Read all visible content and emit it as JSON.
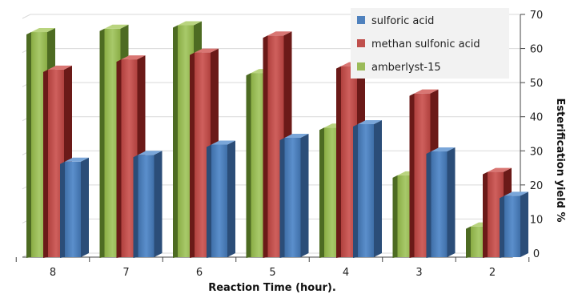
{
  "chart_data": {
    "type": "bar",
    "title": "",
    "xlabel": "Reaction Time (hour).",
    "ylabel": "Esterification yield %",
    "categories": [
      "8",
      "7",
      "6",
      "5",
      "4",
      "3",
      "2"
    ],
    "series": [
      {
        "name": "amberlyst-15",
        "color": "#9bbb59",
        "values": [
          66,
          67,
          68,
          54,
          38,
          24,
          9
        ]
      },
      {
        "name": "methan sulfonic acid",
        "color": "#c0504d",
        "values": [
          55,
          58,
          60,
          65,
          56,
          48,
          25
        ]
      },
      {
        "name": "sulforic acid",
        "color": "#4f81bd",
        "values": [
          28,
          30,
          33,
          35,
          39,
          31,
          18
        ]
      }
    ],
    "legend_order": [
      "sulforic acid",
      "methan sulfonic acid",
      "amberlyst-15"
    ],
    "ylim": [
      0,
      70
    ],
    "yticks": [
      "0",
      "10",
      "20",
      "30",
      "40",
      "50",
      "60",
      "70"
    ],
    "y_axis_side": "right",
    "legend_position": "top-right",
    "grid": true
  }
}
